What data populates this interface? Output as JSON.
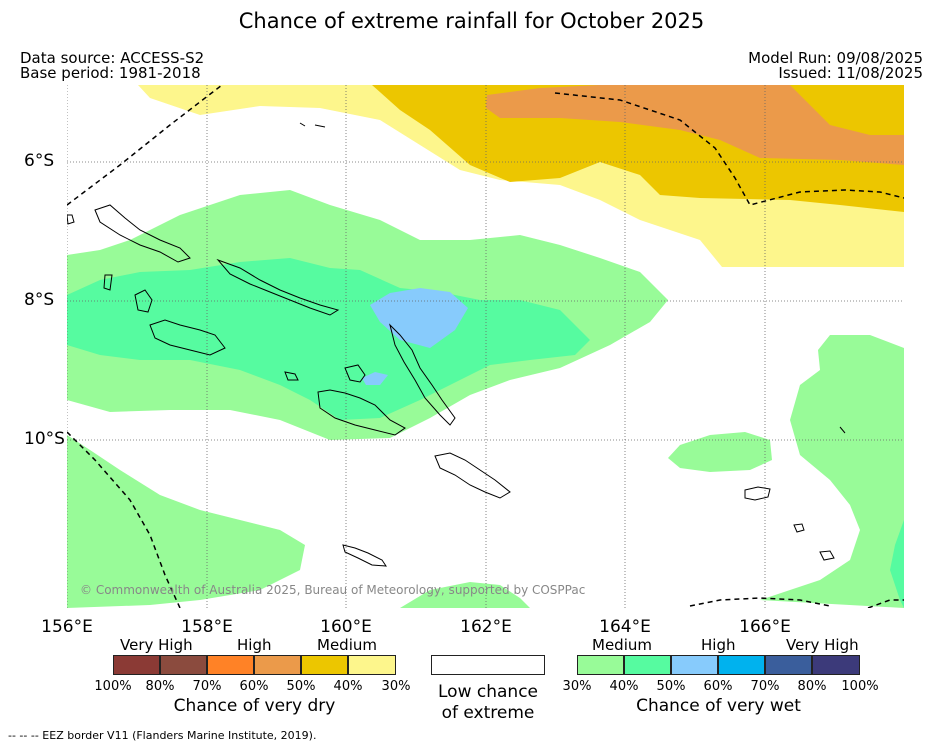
{
  "title": "Chance of extreme rainfall for October 2025",
  "data_source": "Data source: ACCESS-S2",
  "base_period": "Base period: 1981-2018",
  "model_run": "Model Run: 09/08/2025",
  "issued": "Issued: 11/08/2025",
  "lon_ticks": [
    "156°E",
    "158°E",
    "160°E",
    "162°E",
    "164°E",
    "166°E"
  ],
  "lat_ticks": [
    "6°S",
    "8°S",
    "10°S"
  ],
  "copyright": "© Commonwealth of Australia 2025, Bureau of Meteorology, supported by COSPPac",
  "legend": {
    "dry": {
      "headings": [
        "Very High",
        "High",
        "Medium"
      ],
      "colors": [
        "#8b3a35",
        "#8b4b3e",
        "#ff8226",
        "#eb9a4a",
        "#ecc600",
        "#fdf68c"
      ],
      "ticks": [
        "100%",
        "80%",
        "70%",
        "60%",
        "50%",
        "40%",
        "30%"
      ],
      "caption": "Chance of very dry"
    },
    "neutral": {
      "color": "#ffffff",
      "caption_line1": "Low chance",
      "caption_line2": "of extreme"
    },
    "wet": {
      "headings": [
        "Medium",
        "High",
        "Very High"
      ],
      "colors": [
        "#98fb98",
        "#56fba0",
        "#87cbfc",
        "#00b2ee",
        "#3a5e9c",
        "#3c3a7a"
      ],
      "ticks": [
        "30%",
        "40%",
        "50%",
        "60%",
        "70%",
        "80%",
        "100%"
      ],
      "caption": "Chance of very wet"
    }
  },
  "footnote": "--  --  -- EEZ border V11 (Flanders Marine Institute, 2019)."
}
